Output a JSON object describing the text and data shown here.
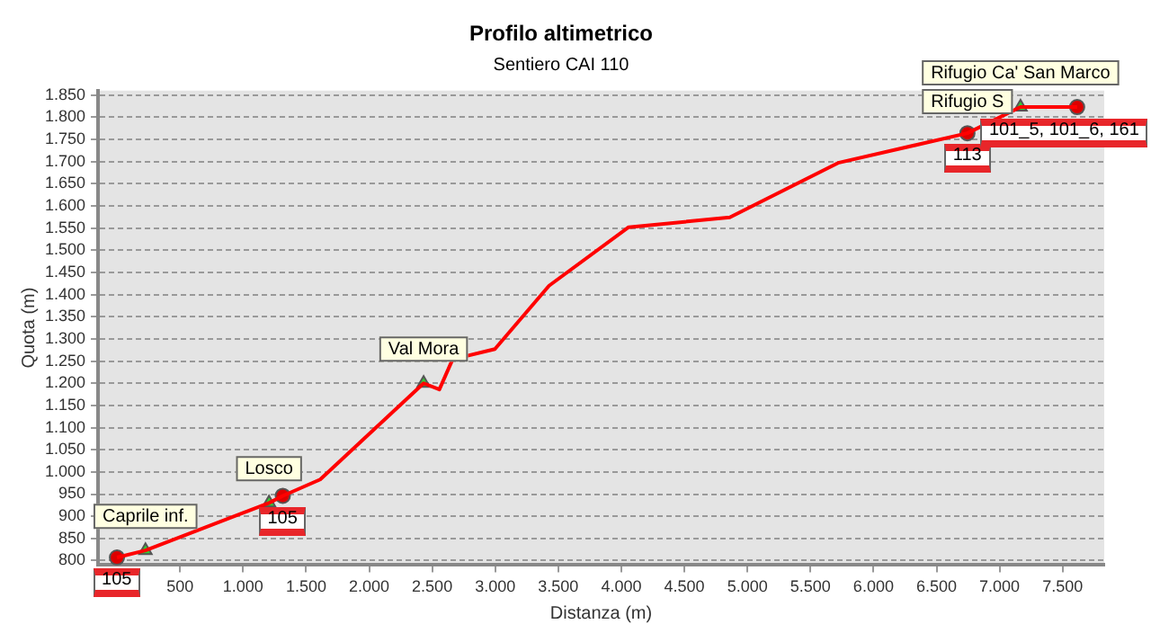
{
  "chart_data": {
    "type": "line",
    "title": "Profilo altimetrico",
    "subtitle": "Sentiero CAI 110",
    "xlabel": "Distanza (m)",
    "ylabel": "Quota (m)",
    "series": [
      {
        "type": "line",
        "color": "#ff0000",
        "marker": "none",
        "x": [
          0,
          226,
          1206,
          1315,
          1612,
          2432,
          2557,
          2662,
          2997,
          3427,
          4058,
          4860,
          5719,
          6745,
          7166,
          7615
        ],
        "values": [
          807,
          823,
          930,
          946,
          983,
          1200,
          1186,
          1254,
          1277,
          1420,
          1552,
          1574,
          1697,
          1764,
          1823,
          1823
        ]
      },
      {
        "type": "scatter",
        "color": "#33cc33",
        "marker": "triangle",
        "x": [
          226,
          1206,
          2432,
          7166
        ],
        "values": [
          823,
          930,
          1200,
          1823
        ]
      },
      {
        "type": "scatter",
        "color": "#dd0000",
        "marker": "circle",
        "x": [
          0,
          1315,
          6745,
          7615
        ],
        "values": [
          807,
          946,
          1764,
          1823
        ]
      }
    ],
    "xlim": [
      -150,
      7830
    ],
    "ylim": [
      790,
      1860
    ],
    "xticks": [
      500,
      {
        "value": 1000,
        "label": "1.000"
      },
      {
        "value": 1500,
        "label": "1.500"
      },
      {
        "value": 2000,
        "label": "2.000"
      },
      {
        "value": 2500,
        "label": "2.500"
      },
      {
        "value": 3000,
        "label": "3.000"
      },
      {
        "value": 3500,
        "label": "3.500"
      },
      {
        "value": 4000,
        "label": "4.000"
      },
      {
        "value": 4500,
        "label": "4.500"
      },
      {
        "value": 5000,
        "label": "5.000"
      },
      {
        "value": 5500,
        "label": "5.500"
      },
      {
        "value": 6000,
        "label": "6.000"
      },
      {
        "value": 6500,
        "label": "6.500"
      },
      {
        "value": 7000,
        "label": "7.000"
      },
      {
        "value": 7500,
        "label": "7.500"
      }
    ],
    "yticks": [
      800,
      850,
      900,
      950,
      {
        "value": 1000,
        "label": "1.000"
      },
      {
        "value": 1050,
        "label": "1.050"
      },
      {
        "value": 1100,
        "label": "1.100"
      },
      {
        "value": 1150,
        "label": "1.150"
      },
      {
        "value": 1200,
        "label": "1.200"
      },
      {
        "value": 1250,
        "label": "1.250"
      },
      {
        "value": 1300,
        "label": "1.300"
      },
      {
        "value": 1350,
        "label": "1.350"
      },
      {
        "value": 1400,
        "label": "1.400"
      },
      {
        "value": 1450,
        "label": "1.450"
      },
      {
        "value": 1500,
        "label": "1.500"
      },
      {
        "value": 1550,
        "label": "1.550"
      },
      {
        "value": 1600,
        "label": "1.600"
      },
      {
        "value": 1650,
        "label": "1.650"
      },
      {
        "value": 1700,
        "label": "1.700"
      },
      {
        "value": 1750,
        "label": "1.750"
      },
      {
        "value": 1800,
        "label": "1.800"
      },
      {
        "value": 1850,
        "label": "1.850"
      }
    ],
    "grid": "y",
    "legend": false,
    "annotations": [
      {
        "text": "Caprile inf.",
        "x": 226,
        "y": 823
      },
      {
        "text": "Losco",
        "x": 1206,
        "y": 930
      },
      {
        "text": "Val Mora",
        "x": 2432,
        "y": 1200
      },
      {
        "text": "Rifugio S",
        "x": 6745,
        "y": 1764
      },
      {
        "text": "Rifugio Ca' San Marco",
        "x": 7166,
        "y": 1823
      },
      {
        "text": "105",
        "x": 0,
        "y": 807
      },
      {
        "text": "105",
        "x": 1315,
        "y": 946
      },
      {
        "text": "113",
        "x": 6745,
        "y": 1764
      },
      {
        "text": "101_5, 101_6, 161",
        "x": 7615,
        "y": 1823
      }
    ]
  }
}
